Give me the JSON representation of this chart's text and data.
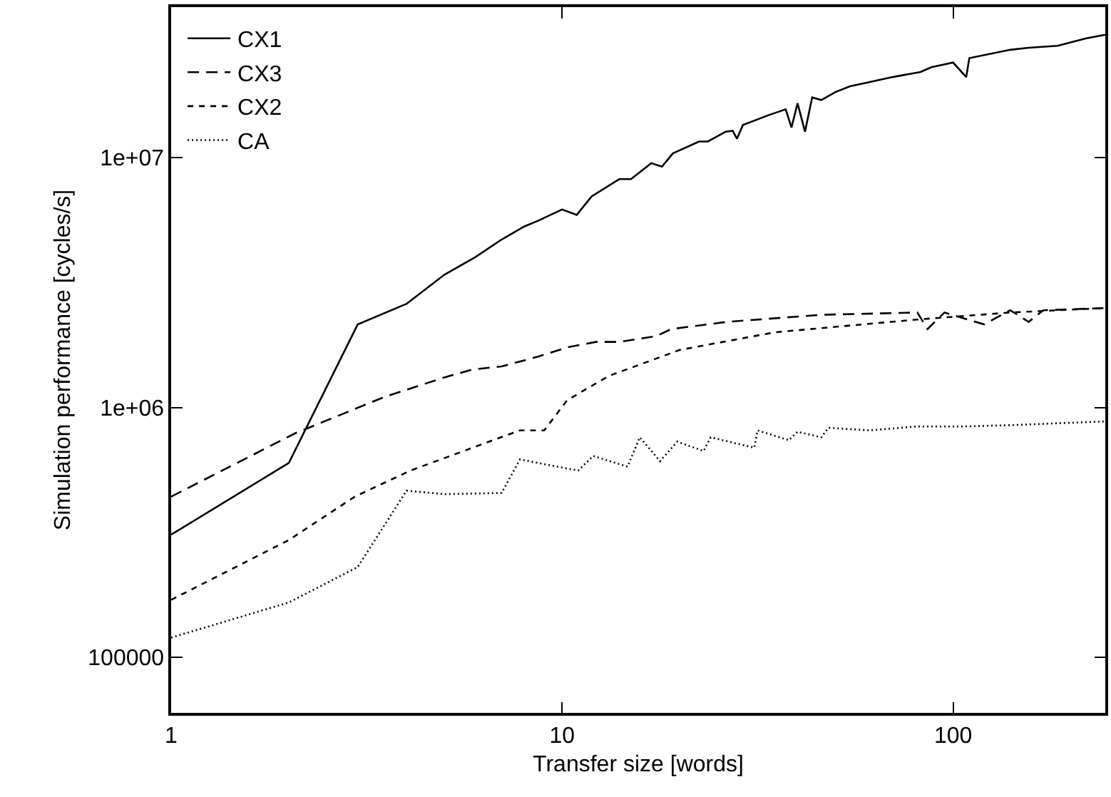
{
  "chart_data": {
    "type": "line",
    "xlabel": "Transfer size [words]",
    "ylabel": "Simulation performance [cycles/s]",
    "log": "xy",
    "xlim": [
      1,
      245
    ],
    "ylim": [
      60000,
      40000000
    ],
    "xticks": [
      1,
      10,
      100
    ],
    "yticks": [
      {
        "value": 100000,
        "label": "100000"
      },
      {
        "value": 1000000,
        "label": "1e+06"
      },
      {
        "value": 10000000,
        "label": "1e+07"
      }
    ],
    "grid": false,
    "legend": "top left",
    "marker": "none",
    "series": [
      {
        "name": "CX1",
        "color": "#000000",
        "line_style": "solid",
        "x": [
          1,
          2,
          3,
          4,
          5,
          6,
          7,
          8,
          8.7,
          10,
          10.9,
          11.9,
          14,
          15,
          16.9,
          18,
          19.2,
          22.4,
          23.6,
          26.2,
          27.3,
          28,
          29,
          33.8,
          37.3,
          38.6,
          40,
          41.8,
          43.6,
          46,
          50,
          54.5,
          60.7,
          70,
          82.5,
          88,
          100,
          108,
          110,
          140,
          156,
          185,
          219,
          245
        ],
        "values": [
          310000,
          600000,
          2150000,
          2600000,
          3400000,
          4000000,
          4700000,
          5300000,
          5600000,
          6200000,
          5900000,
          7000000,
          8200000,
          8200000,
          9500000,
          9200000,
          10400000,
          11600000,
          11600000,
          12700000,
          12800000,
          11900000,
          13500000,
          14800000,
          15600000,
          13200000,
          16500000,
          12700000,
          17400000,
          17000000,
          18300000,
          19300000,
          20000000,
          21000000,
          22000000,
          23000000,
          24000000,
          21000000,
          25000000,
          27000000,
          27500000,
          28000000,
          30000000,
          31000000
        ]
      },
      {
        "name": "CX3",
        "color": "#000000",
        "line_style": "dashed",
        "x": [
          1,
          2.08,
          3.5,
          5,
          5.9,
          7,
          8.7,
          10.3,
          12.2,
          14,
          17.4,
          19,
          26.3,
          46,
          81,
          86,
          95,
          120,
          140,
          156,
          170,
          245
        ],
        "values": [
          440000,
          790000,
          1100000,
          1320000,
          1420000,
          1460000,
          1600000,
          1740000,
          1830000,
          1830000,
          1930000,
          2060000,
          2200000,
          2350000,
          2400000,
          2060000,
          2400000,
          2150000,
          2450000,
          2200000,
          2450000,
          2500000
        ]
      },
      {
        "name": "CX2",
        "color": "#000000",
        "line_style": "dashed",
        "x": [
          1,
          2,
          2.95,
          4.1,
          7.8,
          9,
          10.3,
          13.2,
          20,
          35,
          81,
          140,
          245
        ],
        "values": [
          170000,
          295000,
          440000,
          560000,
          810000,
          810000,
          1070000,
          1340000,
          1700000,
          2000000,
          2250000,
          2400000,
          2500000
        ]
      },
      {
        "name": "CA",
        "color": "#000000",
        "line_style": "dotted",
        "x": [
          1,
          2,
          3,
          4,
          5,
          7,
          7.8,
          10.3,
          11,
          12,
          14.7,
          15.8,
          17.8,
          19.7,
          23,
          24,
          31,
          31.6,
          38,
          40,
          46,
          48,
          61,
          81,
          106,
          140,
          245
        ],
        "values": [
          120000,
          166000,
          230000,
          465000,
          450000,
          455000,
          620000,
          570000,
          560000,
          640000,
          580000,
          760000,
          610000,
          730000,
          670000,
          760000,
          690000,
          810000,
          740000,
          800000,
          760000,
          830000,
          810000,
          840000,
          840000,
          850000,
          880000
        ]
      }
    ]
  }
}
